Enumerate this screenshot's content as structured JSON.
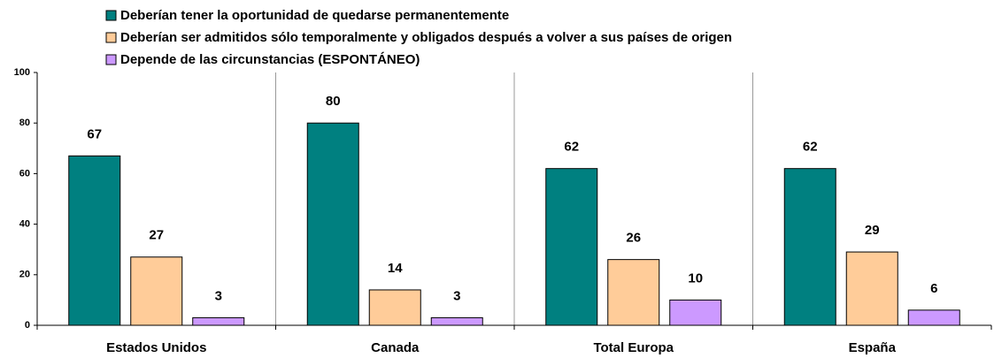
{
  "chart_data": {
    "type": "bar",
    "categories": [
      "Estados Unidos",
      "Canada",
      "Total Europa",
      "España"
    ],
    "series": [
      {
        "name": "Deberían tener la oportunidad de quedarse permanentemente",
        "color": "#008080",
        "values": [
          67,
          80,
          62,
          62
        ]
      },
      {
        "name": "Deberían ser admitidos sólo temporalmente y obligados después a volver a sus países de origen",
        "color": "#ffcc99",
        "values": [
          27,
          14,
          26,
          29
        ]
      },
      {
        "name": "Depende de las circunstancias (ESPONTÁNEO)",
        "color": "#cc99ff",
        "values": [
          3,
          3,
          10,
          6
        ]
      }
    ],
    "ylim": [
      0,
      100
    ],
    "yticks": [
      0,
      20,
      40,
      60,
      80,
      100
    ]
  }
}
